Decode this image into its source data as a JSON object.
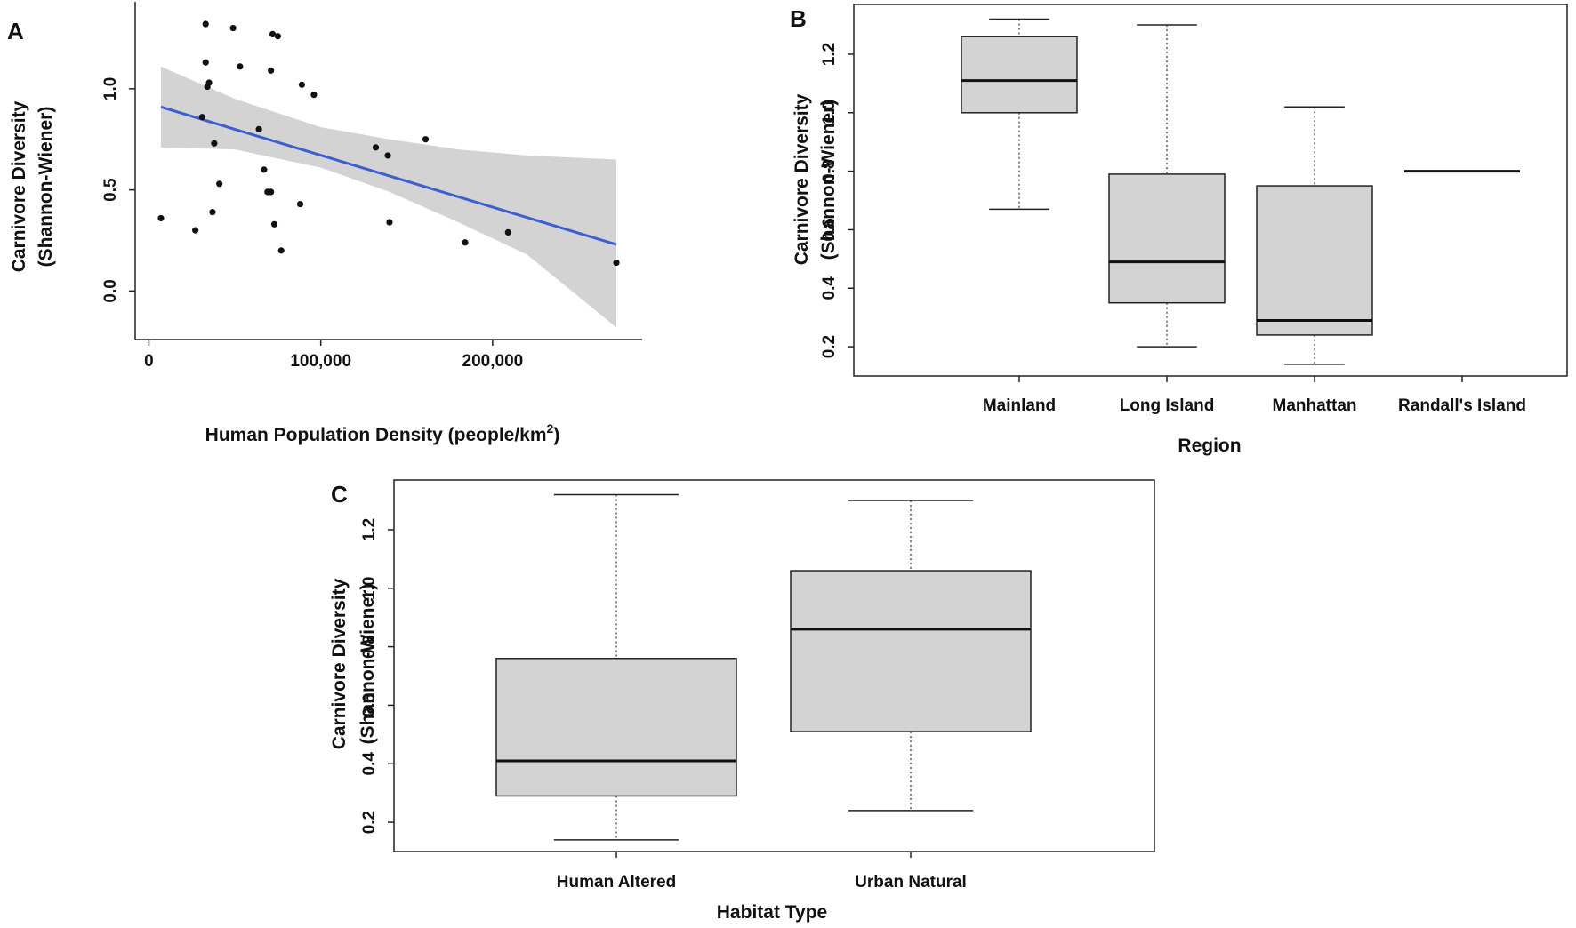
{
  "chart_data": [
    {
      "panel": "A",
      "type": "scatter",
      "panel_label": "A",
      "xlabel": "Human Population Density (people/km",
      "xlabel_sup": "2",
      "xlabel_close": ")",
      "ylabel": [
        "Carnivore Diversity",
        "(Shannon-Wiener)"
      ],
      "xlim": [
        -8000,
        287000
      ],
      "ylim": [
        -0.24,
        1.43
      ],
      "xticks": [
        0,
        100000,
        200000
      ],
      "xtick_labels": [
        "0",
        "100,000",
        "200,000"
      ],
      "yticks": [
        0.0,
        0.5,
        1.0
      ],
      "ytick_labels": [
        "0.0",
        "0.5",
        "1.0"
      ],
      "points": [
        [
          7000,
          0.36
        ],
        [
          27000,
          0.3
        ],
        [
          31000,
          0.86
        ],
        [
          33000,
          1.32
        ],
        [
          33000,
          1.13
        ],
        [
          34000,
          1.01
        ],
        [
          35000,
          1.03
        ],
        [
          37000,
          0.39
        ],
        [
          38000,
          0.73
        ],
        [
          41000,
          0.53
        ],
        [
          49000,
          1.3
        ],
        [
          53000,
          1.11
        ],
        [
          64000,
          0.8
        ],
        [
          67000,
          0.6
        ],
        [
          69000,
          0.49
        ],
        [
          70000,
          0.49
        ],
        [
          71000,
          0.49
        ],
        [
          71000,
          1.09
        ],
        [
          72000,
          1.27
        ],
        [
          73000,
          0.33
        ],
        [
          75000,
          1.26
        ],
        [
          77000,
          0.2
        ],
        [
          88000,
          0.43
        ],
        [
          89000,
          1.02
        ],
        [
          96000,
          0.97
        ],
        [
          132000,
          0.71
        ],
        [
          139000,
          0.67
        ],
        [
          140000,
          0.34
        ],
        [
          161000,
          0.75
        ],
        [
          184000,
          0.24
        ],
        [
          209000,
          0.29
        ],
        [
          272000,
          0.14
        ]
      ],
      "fit_line": {
        "x": [
          7000,
          272000
        ],
        "y": [
          0.91,
          0.23
        ],
        "color": "#3b5fd0"
      },
      "confidence_band": {
        "x": [
          7000,
          50000,
          100000,
          140000,
          180000,
          220000,
          272000
        ],
        "lower": [
          0.71,
          0.7,
          0.61,
          0.49,
          0.34,
          0.18,
          -0.18
        ],
        "upper": [
          1.11,
          0.95,
          0.81,
          0.75,
          0.7,
          0.67,
          0.65
        ]
      }
    },
    {
      "panel": "B",
      "type": "box",
      "panel_label": "B",
      "xlabel": "Region",
      "ylabel": [
        "Carnivore Diversity",
        "(Shannon-Wiener)"
      ],
      "ylim": [
        0.1,
        1.37
      ],
      "yticks": [
        0.2,
        0.4,
        0.6,
        0.8,
        1.0,
        1.2
      ],
      "ytick_labels": [
        "0.2",
        "0.4",
        "0.6",
        "0.8",
        "1.0",
        "1.2"
      ],
      "categories": [
        "Mainland",
        "Long Island",
        "Manhattan",
        "Randall's Island"
      ],
      "boxes": [
        {
          "min": 0.67,
          "q1": 1.0,
          "median": 1.11,
          "q3": 1.26,
          "max": 1.32
        },
        {
          "min": 0.2,
          "q1": 0.35,
          "median": 0.49,
          "q3": 0.79,
          "max": 1.3
        },
        {
          "min": 0.14,
          "q1": 0.24,
          "median": 0.29,
          "q3": 0.75,
          "max": 1.02
        },
        {
          "min": 0.8,
          "q1": 0.8,
          "median": 0.8,
          "q3": 0.8,
          "max": 0.8
        }
      ]
    },
    {
      "panel": "C",
      "type": "box",
      "panel_label": "C",
      "xlabel": "Habitat Type",
      "ylabel": [
        "Carnivore Diversity",
        "(Shannon-Wiener)"
      ],
      "ylim": [
        0.1,
        1.37
      ],
      "yticks": [
        0.2,
        0.4,
        0.6,
        0.8,
        1.0,
        1.2
      ],
      "ytick_labels": [
        "0.2",
        "0.4",
        "0.6",
        "0.8",
        "1.0",
        "1.2"
      ],
      "categories": [
        "Human Altered",
        "Urban Natural"
      ],
      "boxes": [
        {
          "min": 0.14,
          "q1": 0.29,
          "median": 0.41,
          "q3": 0.76,
          "max": 1.32
        },
        {
          "min": 0.24,
          "q1": 0.51,
          "median": 0.86,
          "q3": 1.06,
          "max": 1.3
        }
      ]
    }
  ]
}
